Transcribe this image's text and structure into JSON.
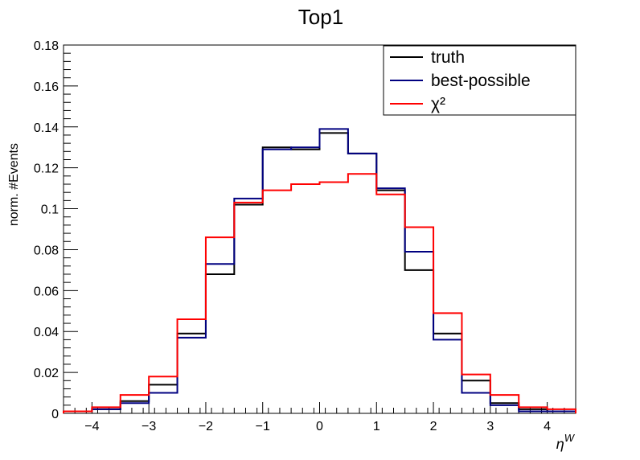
{
  "chart_data": {
    "type": "step-histogram",
    "title": "Top1",
    "xlabel": "η^{W}",
    "ylabel": "norm. #Events",
    "xlim": [
      -4.5,
      4.5
    ],
    "ylim": [
      0,
      0.18
    ],
    "bin_edges": [
      -4.5,
      -4.0,
      -3.5,
      -3.0,
      -2.5,
      -2.0,
      -1.5,
      -1.0,
      -0.5,
      0.0,
      0.5,
      1.0,
      1.5,
      2.0,
      2.5,
      3.0,
      3.5,
      4.0,
      4.5
    ],
    "x_ticks": [
      -4,
      -3,
      -2,
      -1,
      0,
      1,
      2,
      3,
      4
    ],
    "y_ticks": [
      0,
      0.02,
      0.04,
      0.06,
      0.08,
      0.1,
      0.12,
      0.14,
      0.16,
      0.18
    ],
    "y_tick_labels": [
      "0",
      "0.02",
      "0.04",
      "0.06",
      "0.08",
      "0.1",
      "0.12",
      "0.14",
      "0.16",
      "0.18"
    ],
    "legend_position": "top-right",
    "series": [
      {
        "name": "truth",
        "color": "#000000",
        "values": [
          0.001,
          0.002,
          0.006,
          0.014,
          0.039,
          0.068,
          0.102,
          0.13,
          0.129,
          0.137,
          0.127,
          0.109,
          0.07,
          0.039,
          0.016,
          0.005,
          0.002,
          0.001
        ]
      },
      {
        "name": "best-possible",
        "color": "#000080",
        "values": [
          0.001,
          0.002,
          0.005,
          0.01,
          0.037,
          0.073,
          0.105,
          0.129,
          0.13,
          0.139,
          0.127,
          0.11,
          0.079,
          0.036,
          0.01,
          0.004,
          0.001,
          0.001
        ]
      },
      {
        "name": "χ²",
        "color": "#ff0000",
        "values": [
          0.001,
          0.003,
          0.009,
          0.018,
          0.046,
          0.086,
          0.103,
          0.109,
          0.112,
          0.113,
          0.117,
          0.107,
          0.091,
          0.049,
          0.019,
          0.009,
          0.003,
          0.002
        ]
      }
    ]
  }
}
